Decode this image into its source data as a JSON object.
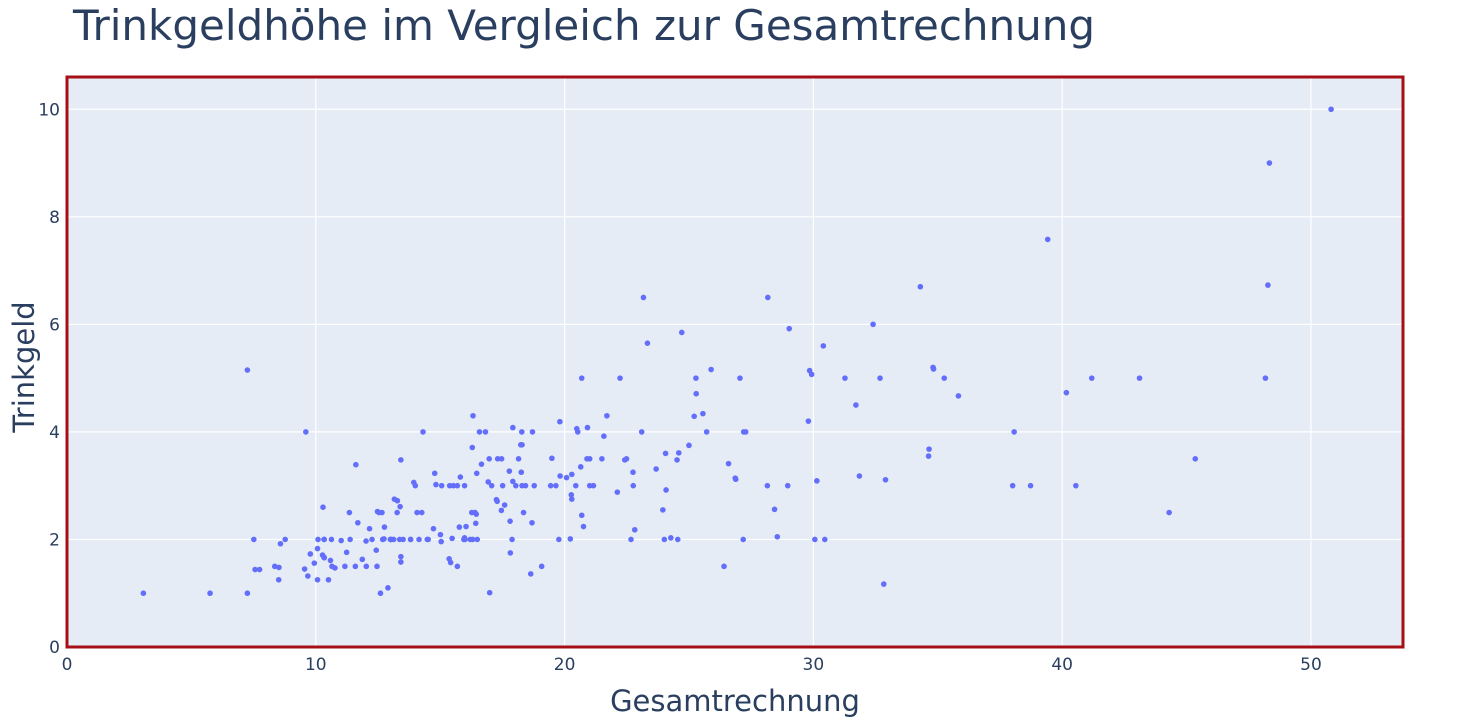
{
  "chart_data": {
    "type": "scatter",
    "title": "Trinkgeldhöhe im Vergleich zur Gesamtrechnung",
    "xlabel": "Gesamtrechnung",
    "ylabel": "Trinkgeld",
    "xlim": [
      0,
      53.7
    ],
    "ylim": [
      0,
      10.6
    ],
    "x_ticks": [
      0,
      10,
      20,
      30,
      40,
      50
    ],
    "y_ticks": [
      0,
      2,
      4,
      6,
      8,
      10
    ],
    "grid": true,
    "legend": "none",
    "colors": {
      "marker": "#636efa",
      "plot_bg": "#e5ecf6",
      "grid": "#ffffff",
      "frame": "#a50f15",
      "text": "#2a3f5f"
    },
    "points": [
      [
        16.99,
        1.01
      ],
      [
        10.34,
        1.66
      ],
      [
        21.01,
        3.5
      ],
      [
        23.68,
        3.31
      ],
      [
        24.59,
        3.61
      ],
      [
        25.29,
        4.71
      ],
      [
        8.77,
        2.0
      ],
      [
        26.88,
        3.12
      ],
      [
        15.04,
        1.96
      ],
      [
        14.78,
        3.23
      ],
      [
        10.27,
        1.71
      ],
      [
        35.26,
        5.0
      ],
      [
        15.42,
        1.57
      ],
      [
        18.43,
        3.0
      ],
      [
        14.83,
        3.02
      ],
      [
        21.58,
        3.92
      ],
      [
        10.33,
        1.67
      ],
      [
        16.29,
        3.71
      ],
      [
        16.97,
        3.5
      ],
      [
        20.65,
        3.35
      ],
      [
        17.92,
        4.08
      ],
      [
        20.29,
        2.75
      ],
      [
        15.77,
        2.23
      ],
      [
        39.42,
        7.58
      ],
      [
        19.82,
        3.18
      ],
      [
        17.81,
        2.34
      ],
      [
        13.37,
        2.0
      ],
      [
        12.69,
        2.0
      ],
      [
        21.7,
        4.3
      ],
      [
        19.65,
        3.0
      ],
      [
        9.55,
        1.45
      ],
      [
        18.35,
        2.5
      ],
      [
        15.06,
        3.0
      ],
      [
        20.69,
        2.45
      ],
      [
        17.78,
        3.27
      ],
      [
        24.06,
        3.6
      ],
      [
        16.31,
        2.0
      ],
      [
        16.93,
        3.07
      ],
      [
        18.69,
        2.31
      ],
      [
        31.27,
        5.0
      ],
      [
        16.04,
        2.24
      ],
      [
        17.46,
        2.54
      ],
      [
        13.94,
        3.06
      ],
      [
        9.68,
        1.32
      ],
      [
        30.4,
        5.6
      ],
      [
        18.29,
        3.0
      ],
      [
        22.23,
        5.0
      ],
      [
        32.4,
        6.0
      ],
      [
        28.55,
        2.05
      ],
      [
        18.04,
        3.0
      ],
      [
        12.54,
        2.5
      ],
      [
        10.29,
        2.6
      ],
      [
        34.81,
        5.2
      ],
      [
        9.94,
        1.56
      ],
      [
        25.56,
        4.34
      ],
      [
        19.49,
        3.51
      ],
      [
        38.01,
        3.0
      ],
      [
        26.41,
        1.5
      ],
      [
        11.24,
        1.76
      ],
      [
        48.27,
        6.73
      ],
      [
        20.29,
        3.21
      ],
      [
        13.81,
        2.0
      ],
      [
        11.02,
        1.98
      ],
      [
        18.29,
        3.76
      ],
      [
        17.59,
        2.64
      ],
      [
        20.08,
        3.15
      ],
      [
        16.45,
        2.47
      ],
      [
        3.07,
        1.0
      ],
      [
        20.23,
        2.01
      ],
      [
        15.01,
        2.09
      ],
      [
        12.02,
        1.97
      ],
      [
        17.07,
        3.0
      ],
      [
        26.86,
        3.14
      ],
      [
        25.28,
        5.0
      ],
      [
        14.73,
        2.2
      ],
      [
        10.51,
        1.25
      ],
      [
        17.92,
        3.08
      ],
      [
        27.2,
        4.0
      ],
      [
        22.76,
        3.0
      ],
      [
        17.29,
        2.71
      ],
      [
        19.44,
        3.0
      ],
      [
        16.66,
        3.4
      ],
      [
        10.07,
        1.83
      ],
      [
        32.68,
        5.0
      ],
      [
        15.98,
        2.03
      ],
      [
        34.83,
        5.17
      ],
      [
        13.03,
        2.0
      ],
      [
        18.28,
        4.0
      ],
      [
        24.71,
        5.85
      ],
      [
        21.16,
        3.0
      ],
      [
        28.97,
        3.0
      ],
      [
        22.49,
        3.5
      ],
      [
        5.75,
        1.0
      ],
      [
        16.32,
        4.3
      ],
      [
        22.75,
        3.25
      ],
      [
        40.17,
        4.73
      ],
      [
        27.28,
        4.0
      ],
      [
        12.03,
        1.5
      ],
      [
        21.01,
        3.0
      ],
      [
        12.46,
        1.5
      ],
      [
        11.35,
        2.5
      ],
      [
        15.38,
        3.0
      ],
      [
        44.3,
        2.5
      ],
      [
        22.42,
        3.48
      ],
      [
        20.92,
        4.08
      ],
      [
        15.36,
        1.64
      ],
      [
        20.49,
        4.06
      ],
      [
        25.21,
        4.29
      ],
      [
        18.24,
        3.76
      ],
      [
        14.31,
        4.0
      ],
      [
        14.0,
        3.0
      ],
      [
        7.25,
        1.0
      ],
      [
        38.07,
        4.0
      ],
      [
        23.95,
        2.55
      ],
      [
        25.71,
        4.0
      ],
      [
        17.31,
        3.5
      ],
      [
        29.93,
        5.07
      ],
      [
        10.65,
        1.5
      ],
      [
        12.43,
        1.8
      ],
      [
        24.08,
        2.92
      ],
      [
        11.69,
        2.31
      ],
      [
        13.42,
        1.68
      ],
      [
        14.26,
        2.5
      ],
      [
        15.95,
        2.0
      ],
      [
        12.48,
        2.52
      ],
      [
        29.8,
        4.2
      ],
      [
        8.52,
        1.48
      ],
      [
        14.52,
        2.0
      ],
      [
        11.38,
        2.0
      ],
      [
        22.82,
        2.18
      ],
      [
        19.08,
        1.5
      ],
      [
        20.27,
        2.83
      ],
      [
        11.17,
        1.5
      ],
      [
        12.26,
        2.0
      ],
      [
        18.26,
        3.25
      ],
      [
        8.51,
        1.25
      ],
      [
        10.33,
        2.0
      ],
      [
        14.15,
        2.0
      ],
      [
        16.0,
        2.0
      ],
      [
        13.16,
        2.75
      ],
      [
        17.47,
        3.5
      ],
      [
        34.3,
        6.7
      ],
      [
        41.19,
        5.0
      ],
      [
        27.05,
        5.0
      ],
      [
        16.43,
        2.3
      ],
      [
        8.35,
        1.5
      ],
      [
        18.64,
        1.36
      ],
      [
        11.87,
        1.63
      ],
      [
        9.78,
        1.73
      ],
      [
        7.51,
        2.0
      ],
      [
        14.07,
        2.5
      ],
      [
        13.13,
        2.0
      ],
      [
        17.26,
        2.74
      ],
      [
        24.55,
        2.0
      ],
      [
        19.77,
        2.0
      ],
      [
        29.85,
        5.14
      ],
      [
        48.17,
        5.0
      ],
      [
        25.0,
        3.75
      ],
      [
        13.39,
        2.61
      ],
      [
        16.49,
        2.0
      ],
      [
        21.5,
        3.5
      ],
      [
        12.66,
        2.5
      ],
      [
        16.21,
        2.0
      ],
      [
        13.81,
        2.0
      ],
      [
        17.51,
        3.0
      ],
      [
        24.52,
        3.48
      ],
      [
        20.76,
        2.24
      ],
      [
        31.71,
        4.5
      ],
      [
        10.59,
        1.61
      ],
      [
        10.63,
        2.0
      ],
      [
        50.81,
        10.0
      ],
      [
        15.81,
        3.16
      ],
      [
        7.25,
        5.15
      ],
      [
        31.85,
        3.18
      ],
      [
        16.82,
        4.0
      ],
      [
        32.9,
        3.11
      ],
      [
        17.89,
        2.0
      ],
      [
        14.48,
        2.0
      ],
      [
        9.6,
        4.0
      ],
      [
        34.63,
        3.55
      ],
      [
        34.65,
        3.68
      ],
      [
        23.33,
        5.65
      ],
      [
        45.35,
        3.5
      ],
      [
        23.17,
        6.5
      ],
      [
        40.55,
        3.0
      ],
      [
        20.69,
        5.0
      ],
      [
        20.9,
        3.5
      ],
      [
        30.46,
        2.0
      ],
      [
        18.15,
        3.5
      ],
      [
        23.1,
        4.0
      ],
      [
        15.69,
        1.5
      ],
      [
        19.81,
        4.19
      ],
      [
        28.44,
        2.56
      ],
      [
        15.48,
        2.02
      ],
      [
        16.58,
        4.0
      ],
      [
        7.56,
        1.44
      ],
      [
        10.34,
        2.0
      ],
      [
        43.11,
        5.0
      ],
      [
        13.0,
        2.0
      ],
      [
        13.51,
        2.0
      ],
      [
        18.71,
        4.0
      ],
      [
        12.74,
        2.01
      ],
      [
        13.0,
        2.0
      ],
      [
        16.4,
        2.5
      ],
      [
        20.53,
        4.0
      ],
      [
        16.47,
        3.23
      ],
      [
        26.59,
        3.41
      ],
      [
        38.73,
        3.0
      ],
      [
        24.27,
        2.03
      ],
      [
        12.76,
        2.23
      ],
      [
        30.06,
        2.0
      ],
      [
        25.89,
        5.16
      ],
      [
        48.33,
        9.0
      ],
      [
        13.27,
        2.5
      ],
      [
        28.17,
        6.5
      ],
      [
        12.9,
        1.1
      ],
      [
        28.15,
        3.0
      ],
      [
        11.59,
        1.5
      ],
      [
        7.74,
        1.44
      ],
      [
        30.14,
        3.09
      ],
      [
        12.16,
        2.2
      ],
      [
        13.42,
        3.48
      ],
      [
        8.58,
        1.92
      ],
      [
        15.98,
        3.0
      ],
      [
        13.42,
        1.58
      ],
      [
        16.27,
        2.5
      ],
      [
        10.09,
        2.0
      ],
      [
        20.45,
        3.0
      ],
      [
        13.28,
        2.72
      ],
      [
        22.12,
        2.88
      ],
      [
        24.01,
        2.0
      ],
      [
        15.69,
        3.0
      ],
      [
        11.61,
        3.39
      ],
      [
        10.77,
        1.47
      ],
      [
        15.53,
        3.0
      ],
      [
        10.07,
        1.25
      ],
      [
        12.6,
        1.0
      ],
      [
        32.83,
        1.17
      ],
      [
        35.83,
        4.67
      ],
      [
        29.03,
        5.92
      ],
      [
        27.18,
        2.0
      ],
      [
        22.67,
        2.0
      ],
      [
        17.82,
        1.75
      ],
      [
        18.78,
        3.0
      ]
    ]
  }
}
